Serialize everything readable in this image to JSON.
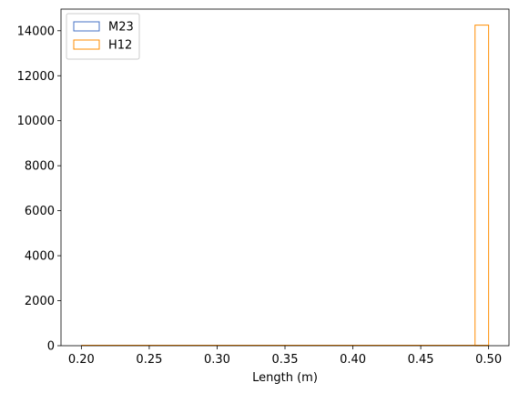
{
  "chart_data": {
    "type": "histogram",
    "title": "",
    "xlabel": "Length (m)",
    "ylabel": "",
    "xlim": [
      0.185,
      0.515
    ],
    "ylim": [
      0,
      14962.5
    ],
    "x_ticks": [
      "0.20",
      "0.25",
      "0.30",
      "0.35",
      "0.40",
      "0.45",
      "0.50"
    ],
    "x_tick_values": [
      0.2,
      0.25,
      0.3,
      0.35,
      0.4,
      0.45,
      0.5
    ],
    "y_ticks": [
      "0",
      "2000",
      "4000",
      "6000",
      "8000",
      "10000",
      "12000",
      "14000"
    ],
    "y_tick_values": [
      0,
      2000,
      4000,
      6000,
      8000,
      10000,
      12000,
      14000
    ],
    "grid": false,
    "legend_position": "top-left",
    "histtype": "step",
    "series": [
      {
        "name": "M23",
        "color": "#4472c4",
        "bins": [
          {
            "x0": 0.2,
            "x1": 0.21,
            "count": 0
          },
          {
            "x0": 0.49,
            "x1": 0.5,
            "count": 0
          }
        ]
      },
      {
        "name": "H12",
        "color": "#ff8c00",
        "bins": [
          {
            "x0": 0.2,
            "x1": 0.21,
            "count": 0
          },
          {
            "x0": 0.21,
            "x1": 0.49,
            "count": 0
          },
          {
            "x0": 0.49,
            "x1": 0.5,
            "count": 14250
          }
        ]
      }
    ]
  }
}
